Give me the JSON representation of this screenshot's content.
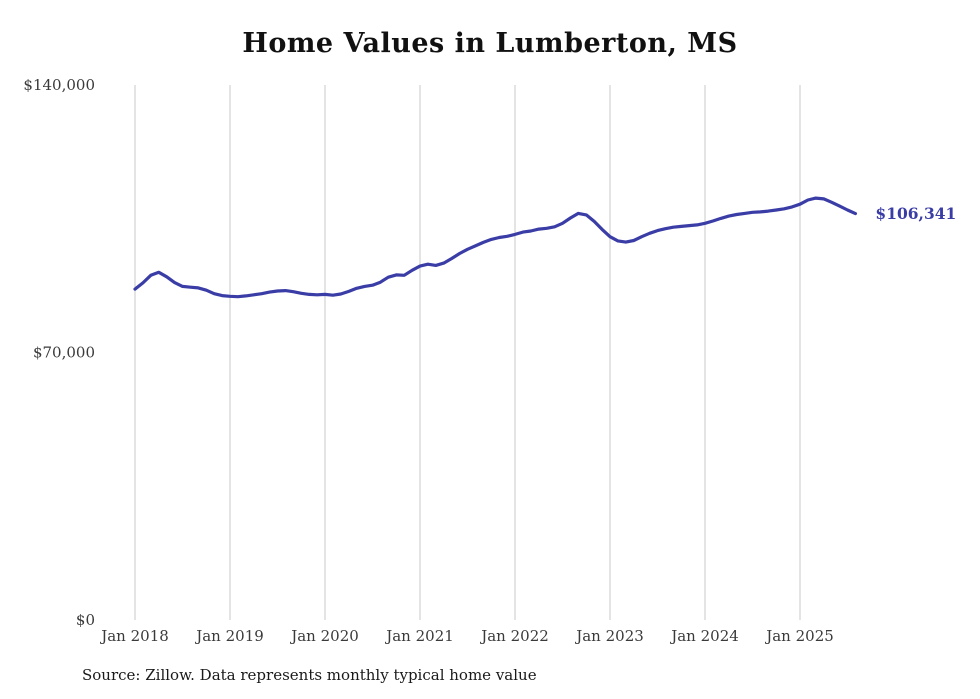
{
  "title": "Home Values in Lumberton, MS",
  "source_note": "Source: Zillow. Data represents monthly typical home value",
  "colors": {
    "line": "#3a3da6",
    "grid": "#c9c9c9",
    "tick_text": "#3a3a3a",
    "title_text": "#111111"
  },
  "chart_data": {
    "type": "line",
    "title": "Home Values in Lumberton, MS",
    "xlabel": "",
    "ylabel": "",
    "ylim": [
      0,
      140000
    ],
    "grid": "vertical-only",
    "legend": "none",
    "x_start": "2018-01",
    "x_end": "2025-08",
    "x_tick_labels": [
      "Jan 2018",
      "Jan 2019",
      "Jan 2020",
      "Jan 2021",
      "Jan 2022",
      "Jan 2023",
      "Jan 2024",
      "Jan 2025"
    ],
    "y_ticks": [
      {
        "label": "$0",
        "value": 0
      },
      {
        "label": "$70,000",
        "value": 70000
      },
      {
        "label": "$140,000",
        "value": 140000
      }
    ],
    "final_value": 106341,
    "final_value_label": "$106,341",
    "series": [
      {
        "name": "Monthly typical home value",
        "values": [
          86600,
          88200,
          90200,
          91000,
          89800,
          88300,
          87300,
          87100,
          86900,
          86300,
          85400,
          84900,
          84700,
          84600,
          84800,
          85100,
          85400,
          85800,
          86100,
          86200,
          85900,
          85500,
          85200,
          85100,
          85200,
          85000,
          85300,
          86000,
          86800,
          87300,
          87600,
          88400,
          89700,
          90300,
          90200,
          91500,
          92600,
          93100,
          92800,
          93400,
          94600,
          95900,
          97000,
          97900,
          98800,
          99600,
          100100,
          100400,
          100900,
          101500,
          101800,
          102300,
          102500,
          102900,
          103800,
          105200,
          106400,
          106000,
          104300,
          102200,
          100300,
          99200,
          98900,
          99300,
          100300,
          101200,
          101900,
          102400,
          102800,
          103000,
          103200,
          103400,
          103800,
          104400,
          105100,
          105700,
          106100,
          106400,
          106700,
          106800,
          107000,
          107300,
          107600,
          108100,
          108800,
          109900,
          110400,
          110200,
          109300,
          108300,
          107300,
          106341
        ]
      }
    ]
  }
}
